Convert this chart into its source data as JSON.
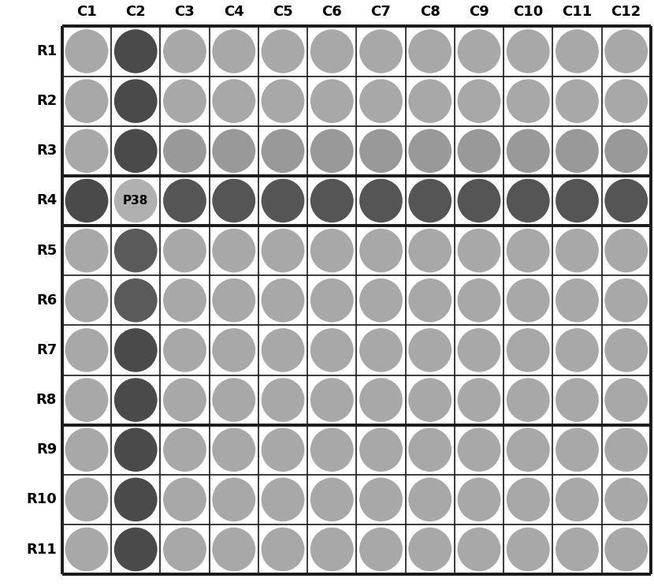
{
  "n_rows": 11,
  "n_cols": 12,
  "row_labels": [
    "R1",
    "R2",
    "R3",
    "R4",
    "R5",
    "R6",
    "R7",
    "R8",
    "R9",
    "R10",
    "R11"
  ],
  "col_labels": [
    "C1",
    "C2",
    "C3",
    "C4",
    "C5",
    "C6",
    "C7",
    "C8",
    "C9",
    "C10",
    "C11",
    "C12"
  ],
  "p38_label": "P38",
  "p38_row": 3,
  "p38_col": 1,
  "thick_borders_after_rows": [
    2,
    3,
    7
  ],
  "colors": {
    "cell_bg": "#f0f0f0",
    "border": "#1a1a1a",
    "white_bg": "#ffffff"
  },
  "circle_colors": [
    [
      "#a8a8a8",
      "#4a4a4a",
      "#a8a8a8",
      "#a8a8a8",
      "#a8a8a8",
      "#a8a8a8",
      "#a8a8a8",
      "#a8a8a8",
      "#a8a8a8",
      "#a8a8a8",
      "#a8a8a8",
      "#a8a8a8"
    ],
    [
      "#a8a8a8",
      "#4a4a4a",
      "#a8a8a8",
      "#a8a8a8",
      "#a8a8a8",
      "#a8a8a8",
      "#a8a8a8",
      "#a8a8a8",
      "#a8a8a8",
      "#a8a8a8",
      "#a8a8a8",
      "#a8a8a8"
    ],
    [
      "#a8a8a8",
      "#4a4a4a",
      "#999999",
      "#999999",
      "#999999",
      "#999999",
      "#999999",
      "#999999",
      "#999999",
      "#999999",
      "#999999",
      "#999999"
    ],
    [
      "#4a4a4a",
      "#999999",
      "#555555",
      "#555555",
      "#555555",
      "#555555",
      "#555555",
      "#555555",
      "#555555",
      "#555555",
      "#555555",
      "#555555"
    ],
    [
      "#a8a8a8",
      "#5a5a5a",
      "#a8a8a8",
      "#a8a8a8",
      "#a8a8a8",
      "#a8a8a8",
      "#a8a8a8",
      "#a8a8a8",
      "#a8a8a8",
      "#a8a8a8",
      "#a8a8a8",
      "#a8a8a8"
    ],
    [
      "#a8a8a8",
      "#5a5a5a",
      "#a8a8a8",
      "#a8a8a8",
      "#a8a8a8",
      "#a8a8a8",
      "#a8a8a8",
      "#a8a8a8",
      "#a8a8a8",
      "#a8a8a8",
      "#a8a8a8",
      "#a8a8a8"
    ],
    [
      "#a8a8a8",
      "#4a4a4a",
      "#a8a8a8",
      "#a8a8a8",
      "#a8a8a8",
      "#a8a8a8",
      "#a8a8a8",
      "#a8a8a8",
      "#a8a8a8",
      "#a8a8a8",
      "#a8a8a8",
      "#a8a8a8"
    ],
    [
      "#a8a8a8",
      "#4a4a4a",
      "#a8a8a8",
      "#a8a8a8",
      "#a8a8a8",
      "#a8a8a8",
      "#a8a8a8",
      "#a8a8a8",
      "#a8a8a8",
      "#a8a8a8",
      "#a8a8a8",
      "#a8a8a8"
    ],
    [
      "#a8a8a8",
      "#4a4a4a",
      "#a8a8a8",
      "#a8a8a8",
      "#a8a8a8",
      "#a8a8a8",
      "#a8a8a8",
      "#a8a8a8",
      "#a8a8a8",
      "#a8a8a8",
      "#a8a8a8",
      "#a8a8a8"
    ],
    [
      "#a8a8a8",
      "#4a4a4a",
      "#a8a8a8",
      "#a8a8a8",
      "#a8a8a8",
      "#a8a8a8",
      "#a8a8a8",
      "#a8a8a8",
      "#a8a8a8",
      "#a8a8a8",
      "#a8a8a8",
      "#a8a8a8"
    ],
    [
      "#a8a8a8",
      "#4a4a4a",
      "#a8a8a8",
      "#a8a8a8",
      "#a8a8a8",
      "#a8a8a8",
      "#a8a8a8",
      "#a8a8a8",
      "#a8a8a8",
      "#a8a8a8",
      "#a8a8a8",
      "#a8a8a8"
    ]
  ],
  "fig_w": 8.3,
  "fig_h": 7.43,
  "dpi": 100,
  "thin_lw": 1.2,
  "thick_lw": 2.8,
  "col_header_fontsize": 13,
  "row_header_fontsize": 13,
  "p38_fontsize": 11
}
